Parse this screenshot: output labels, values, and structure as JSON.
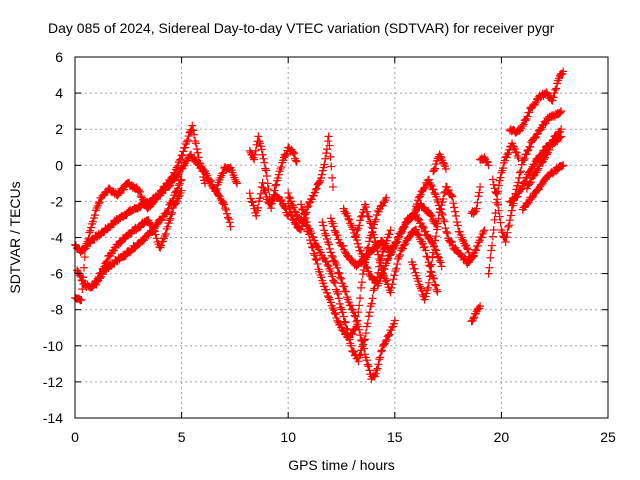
{
  "chart_data": {
    "type": "scatter",
    "title": "Day 085 of 2024, Sidereal Day-to-day VTEC variation (SDTVAR) for receiver pygr",
    "xlabel": "GPS time / hours",
    "ylabel": "SDTVAR / TECUs",
    "xlim": [
      0,
      25
    ],
    "ylim": [
      -14,
      6
    ],
    "xticks": [
      0,
      5,
      10,
      15,
      20,
      25
    ],
    "yticks": [
      -14,
      -12,
      -10,
      -8,
      -6,
      -4,
      -2,
      0,
      2,
      4,
      6
    ],
    "grid": true,
    "marker": "+",
    "color": "#ff0000",
    "tracks": [
      [
        [
          0.0,
          -4.4
        ],
        [
          0.3,
          -4.8
        ],
        [
          0.7,
          -4.2
        ],
        [
          1.2,
          -3.8
        ],
        [
          1.6,
          -3.4
        ],
        [
          2.0,
          -3.0
        ],
        [
          2.5,
          -2.6
        ],
        [
          3.0,
          -2.3
        ],
        [
          3.5,
          -2.0
        ],
        [
          4.0,
          -1.6
        ],
        [
          4.5,
          -1.0
        ],
        [
          5.0,
          -0.2
        ],
        [
          5.4,
          0.6
        ],
        [
          5.7,
          0.2
        ],
        [
          6.1,
          -0.4
        ],
        [
          6.5,
          -1.2
        ],
        [
          7.0,
          -2.2
        ],
        [
          7.3,
          -3.4
        ]
      ],
      [
        [
          0.1,
          -5.8
        ],
        [
          0.4,
          -6.6
        ],
        [
          0.8,
          -6.8
        ],
        [
          1.2,
          -6.0
        ],
        [
          1.6,
          -5.0
        ],
        [
          2.0,
          -4.4
        ],
        [
          2.5,
          -3.8
        ],
        [
          3.0,
          -3.4
        ],
        [
          3.4,
          -3.0
        ],
        [
          3.7,
          -3.6
        ],
        [
          4.0,
          -4.6
        ],
        [
          4.3,
          -3.6
        ],
        [
          4.6,
          -2.4
        ],
        [
          5.0,
          -1.4
        ]
      ],
      [
        [
          0.0,
          -7.4
        ],
        [
          0.3,
          -7.4
        ],
        [
          0.5,
          -4.6
        ],
        [
          0.8,
          -3.2
        ],
        [
          1.2,
          -1.8
        ],
        [
          1.6,
          -1.3
        ],
        [
          2.0,
          -1.6
        ],
        [
          2.5,
          -1.0
        ],
        [
          3.0,
          -1.4
        ],
        [
          3.4,
          -2.4
        ],
        [
          3.8,
          -1.8
        ],
        [
          4.2,
          -1.2
        ],
        [
          4.6,
          -0.6
        ],
        [
          5.0,
          0.5
        ],
        [
          5.2,
          1.2
        ],
        [
          5.5,
          2.2
        ],
        [
          5.8,
          0.4
        ],
        [
          6.1,
          -1.0
        ]
      ],
      [
        [
          1.0,
          -6.6
        ],
        [
          1.4,
          -5.8
        ],
        [
          1.8,
          -5.4
        ],
        [
          2.3,
          -5.0
        ],
        [
          2.7,
          -4.6
        ],
        [
          3.1,
          -4.2
        ],
        [
          3.5,
          -3.8
        ],
        [
          3.9,
          -3.2
        ],
        [
          4.3,
          -2.6
        ],
        [
          4.7,
          -1.6
        ],
        [
          5.0,
          -0.8
        ]
      ],
      [
        [
          6.6,
          -1.4
        ],
        [
          7.0,
          -0.2
        ],
        [
          7.3,
          -0.1
        ],
        [
          7.6,
          -1.0
        ]
      ],
      [
        [
          8.2,
          0.8
        ],
        [
          8.4,
          0.4
        ],
        [
          8.6,
          1.6
        ],
        [
          8.8,
          0.6
        ],
        [
          9.0,
          -0.6
        ],
        [
          9.2,
          -2.4
        ],
        [
          9.4,
          -1.2
        ],
        [
          9.6,
          -0.4
        ],
        [
          9.8,
          0.4
        ],
        [
          10.0,
          0.9
        ],
        [
          10.2,
          0.8
        ],
        [
          10.4,
          0.2
        ]
      ],
      [
        [
          8.2,
          -1.6
        ],
        [
          8.5,
          -2.8
        ],
        [
          8.8,
          -1.0
        ],
        [
          9.1,
          -2.2
        ],
        [
          9.4,
          -1.6
        ],
        [
          9.7,
          -2.0
        ],
        [
          10.0,
          -2.8
        ]
      ],
      [
        [
          10.0,
          -2.2
        ],
        [
          10.3,
          -3.2
        ],
        [
          10.6,
          -3.6
        ],
        [
          10.9,
          -2.4
        ],
        [
          11.2,
          -1.6
        ],
        [
          11.5,
          -0.8
        ],
        [
          11.7,
          0.0
        ],
        [
          11.9,
          1.6
        ],
        [
          12.1,
          -1.2
        ]
      ],
      [
        [
          10.0,
          -1.6
        ],
        [
          10.4,
          -2.8
        ],
        [
          10.8,
          -3.2
        ],
        [
          11.2,
          -4.8
        ],
        [
          11.6,
          -6.4
        ],
        [
          12.0,
          -7.6
        ],
        [
          12.4,
          -8.8
        ],
        [
          12.8,
          -9.6
        ],
        [
          13.2,
          -9.0
        ],
        [
          13.5,
          -6.0
        ],
        [
          13.8,
          -4.2
        ],
        [
          14.2,
          -2.6
        ],
        [
          14.6,
          -1.8
        ]
      ],
      [
        [
          10.6,
          -2.2
        ],
        [
          11.0,
          -3.6
        ],
        [
          11.4,
          -4.6
        ],
        [
          11.8,
          -5.4
        ],
        [
          12.2,
          -6.6
        ],
        [
          12.6,
          -8.4
        ],
        [
          13.0,
          -10.2
        ],
        [
          13.3,
          -10.8
        ],
        [
          13.6,
          -9.6
        ],
        [
          14.0,
          -7.0
        ],
        [
          14.4,
          -5.0
        ],
        [
          14.8,
          -3.6
        ]
      ],
      [
        [
          11.6,
          -3.2
        ],
        [
          12.0,
          -4.8
        ],
        [
          12.4,
          -6.0
        ],
        [
          12.8,
          -7.4
        ],
        [
          13.2,
          -8.6
        ],
        [
          13.6,
          -10.4
        ],
        [
          13.9,
          -11.8
        ],
        [
          14.1,
          -11.6
        ],
        [
          14.4,
          -10.2
        ],
        [
          14.8,
          -9.2
        ],
        [
          15.0,
          -8.6
        ]
      ],
      [
        [
          12.0,
          -3.0
        ],
        [
          12.4,
          -4.2
        ],
        [
          12.8,
          -5.0
        ],
        [
          13.2,
          -5.6
        ],
        [
          13.6,
          -5.2
        ],
        [
          14.0,
          -4.6
        ],
        [
          14.4,
          -4.2
        ],
        [
          14.8,
          -4.8
        ],
        [
          15.2,
          -4.0
        ],
        [
          15.6,
          -3.0
        ],
        [
          16.0,
          -2.8
        ],
        [
          16.4,
          -3.6
        ],
        [
          16.8,
          -4.4
        ],
        [
          17.2,
          -5.6
        ]
      ],
      [
        [
          13.2,
          -3.8
        ],
        [
          13.6,
          -2.2
        ],
        [
          14.0,
          -3.8
        ],
        [
          14.4,
          -5.8
        ],
        [
          14.8,
          -7.0
        ],
        [
          15.2,
          -5.0
        ],
        [
          15.6,
          -4.0
        ],
        [
          16.0,
          -3.6
        ],
        [
          16.4,
          -4.6
        ],
        [
          16.8,
          -6.2
        ],
        [
          17.0,
          -7.0
        ]
      ],
      [
        [
          12.6,
          -2.4
        ],
        [
          13.0,
          -3.4
        ],
        [
          13.4,
          -4.8
        ],
        [
          13.8,
          -6.0
        ],
        [
          14.2,
          -6.6
        ],
        [
          14.6,
          -5.4
        ],
        [
          15.0,
          -4.4
        ],
        [
          15.4,
          -3.4
        ],
        [
          15.8,
          -2.8
        ],
        [
          16.2,
          -2.2
        ],
        [
          16.6,
          -2.6
        ],
        [
          17.0,
          -3.4
        ]
      ],
      [
        [
          15.8,
          -5.4
        ],
        [
          16.1,
          -6.4
        ],
        [
          16.4,
          -7.4
        ],
        [
          16.6,
          -6.6
        ],
        [
          16.8,
          -4.8
        ],
        [
          17.1,
          -2.6
        ],
        [
          17.4,
          -1.2
        ],
        [
          17.7,
          -1.8
        ],
        [
          18.0,
          -3.6
        ],
        [
          18.3,
          -4.4
        ],
        [
          18.6,
          -5.2
        ],
        [
          18.9,
          -4.4
        ],
        [
          19.2,
          -3.6
        ]
      ],
      [
        [
          16.0,
          -2.2
        ],
        [
          16.3,
          -1.4
        ],
        [
          16.6,
          -0.8
        ],
        [
          16.9,
          -1.6
        ],
        [
          17.2,
          -2.6
        ],
        [
          17.5,
          -4.0
        ],
        [
          17.8,
          -4.6
        ],
        [
          18.1,
          -5.0
        ],
        [
          18.4,
          -5.4
        ],
        [
          18.7,
          -5.0
        ]
      ],
      [
        [
          16.8,
          -0.4
        ],
        [
          17.1,
          0.6
        ],
        [
          17.4,
          -0.2
        ]
      ],
      [
        [
          18.6,
          -8.6
        ],
        [
          18.8,
          -8.2
        ],
        [
          19.0,
          -7.8
        ]
      ],
      [
        [
          18.6,
          -2.6
        ],
        [
          18.8,
          -2.6
        ],
        [
          19.0,
          -1.2
        ]
      ],
      [
        [
          19.0,
          0.3
        ],
        [
          19.2,
          0.4
        ],
        [
          19.4,
          0.0
        ]
      ],
      [
        [
          19.4,
          -6.0
        ],
        [
          19.6,
          -4.0
        ],
        [
          19.8,
          -1.6
        ],
        [
          20.0,
          -0.4
        ],
        [
          20.2,
          0.4
        ],
        [
          20.5,
          1.2
        ],
        [
          20.8,
          0.4
        ]
      ],
      [
        [
          19.6,
          -0.8
        ],
        [
          19.8,
          -1.8
        ],
        [
          20.0,
          -3.6
        ],
        [
          20.2,
          -4.2
        ],
        [
          20.4,
          -3.0
        ],
        [
          20.7,
          -1.4
        ],
        [
          21.0,
          0.2
        ],
        [
          21.4,
          1.2
        ],
        [
          21.8,
          2.0
        ],
        [
          22.2,
          2.6
        ],
        [
          22.6,
          2.8
        ],
        [
          22.8,
          3.0
        ]
      ],
      [
        [
          20.4,
          2.0
        ],
        [
          20.7,
          1.8
        ],
        [
          21.0,
          2.2
        ],
        [
          21.4,
          3.2
        ],
        [
          21.8,
          3.8
        ],
        [
          22.1,
          4.0
        ],
        [
          22.4,
          3.6
        ],
        [
          22.7,
          4.8
        ],
        [
          22.9,
          5.2
        ]
      ],
      [
        [
          20.4,
          -2.0
        ],
        [
          20.8,
          -1.6
        ],
        [
          21.2,
          -0.6
        ],
        [
          21.6,
          0.2
        ],
        [
          22.0,
          0.8
        ],
        [
          22.4,
          1.4
        ],
        [
          22.8,
          2.0
        ]
      ],
      [
        [
          21.0,
          -2.4
        ],
        [
          21.4,
          -1.8
        ],
        [
          21.8,
          -1.2
        ],
        [
          22.2,
          -0.6
        ],
        [
          22.6,
          -0.2
        ],
        [
          22.9,
          0.0
        ]
      ],
      [
        [
          21.2,
          -1.2
        ],
        [
          21.6,
          -0.4
        ],
        [
          22.0,
          0.4
        ],
        [
          22.4,
          1.2
        ],
        [
          22.8,
          1.6
        ]
      ]
    ]
  }
}
